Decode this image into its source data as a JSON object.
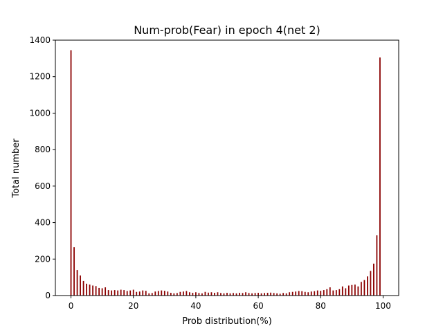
{
  "chart_data": {
    "type": "bar",
    "title": "Num-prob(Fear) in epoch 4(net 2)",
    "xlabel": "Prob distribution(%)",
    "ylabel": "Total number",
    "xlim": [
      -5,
      105
    ],
    "ylim": [
      0,
      1400
    ],
    "x_ticks": [
      0,
      20,
      40,
      60,
      80,
      100
    ],
    "y_ticks": [
      0,
      200,
      400,
      600,
      800,
      1000,
      1200,
      1400
    ],
    "bar_color": "#8b0000",
    "bar_width": 0.4,
    "grid": false,
    "x": [
      0,
      1,
      2,
      3,
      4,
      5,
      6,
      7,
      8,
      9,
      10,
      11,
      12,
      13,
      14,
      15,
      16,
      17,
      18,
      19,
      20,
      21,
      22,
      23,
      24,
      25,
      26,
      27,
      28,
      29,
      30,
      31,
      32,
      33,
      34,
      35,
      36,
      37,
      38,
      39,
      40,
      41,
      42,
      43,
      44,
      45,
      46,
      47,
      48,
      49,
      50,
      51,
      52,
      53,
      54,
      55,
      56,
      57,
      58,
      59,
      60,
      61,
      62,
      63,
      64,
      65,
      66,
      67,
      68,
      69,
      70,
      71,
      72,
      73,
      74,
      75,
      76,
      77,
      78,
      79,
      80,
      81,
      82,
      83,
      84,
      85,
      86,
      87,
      88,
      89,
      90,
      91,
      92,
      93,
      94,
      95,
      96,
      97,
      98,
      99
    ],
    "values": [
      1345,
      265,
      140,
      110,
      80,
      65,
      60,
      55,
      52,
      42,
      40,
      45,
      30,
      28,
      30,
      28,
      32,
      30,
      25,
      28,
      32,
      20,
      22,
      28,
      26,
      12,
      14,
      22,
      25,
      28,
      26,
      22,
      15,
      12,
      14,
      20,
      22,
      25,
      18,
      15,
      18,
      14,
      12,
      20,
      16,
      18,
      15,
      18,
      14,
      12,
      15,
      12,
      14,
      12,
      15,
      14,
      18,
      14,
      12,
      14,
      15,
      12,
      14,
      15,
      16,
      14,
      12,
      10,
      14,
      12,
      18,
      20,
      22,
      25,
      24,
      20,
      18,
      22,
      24,
      28,
      26,
      30,
      35,
      45,
      28,
      30,
      35,
      50,
      40,
      55,
      58,
      60,
      50,
      75,
      85,
      105,
      135,
      175,
      330,
      1305
    ]
  }
}
